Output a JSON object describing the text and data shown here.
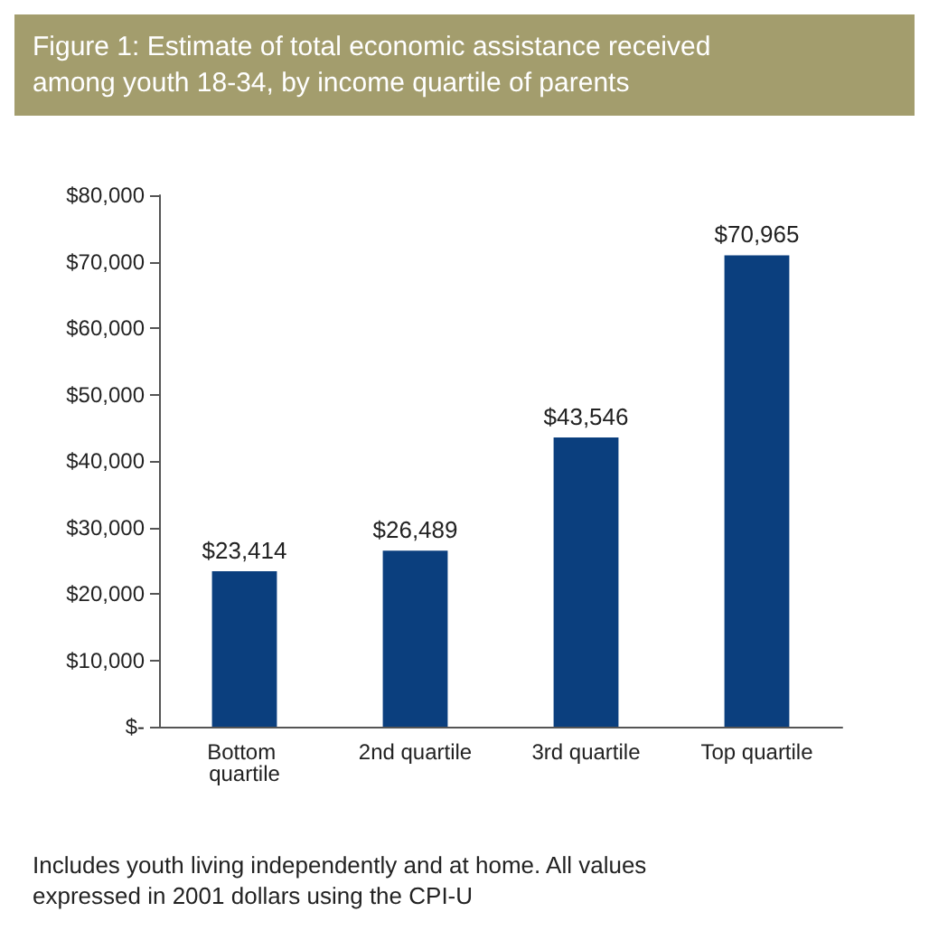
{
  "chart_data": {
    "type": "bar",
    "title": "Figure 1: Estimate of total economic assistance received among youth 18-34, by income quartile of parents",
    "categories": [
      "Bottom quartile",
      "2nd quartile",
      "3rd quartile",
      "Top quartile"
    ],
    "values": [
      23414,
      26489,
      43546,
      70965
    ],
    "value_labels": [
      "$23,414",
      "$26,489",
      "$43,546",
      "$70,965"
    ],
    "color": "#0b3f7e",
    "ylim": [
      0,
      80000
    ],
    "yticks": [
      {
        "value": 0,
        "label": "$-"
      },
      {
        "value": 10000,
        "label": "$10,000"
      },
      {
        "value": 20000,
        "label": "$20,000"
      },
      {
        "value": 30000,
        "label": "$30,000"
      },
      {
        "value": 40000,
        "label": "$40,000"
      },
      {
        "value": 50000,
        "label": "$50,000"
      },
      {
        "value": 60000,
        "label": "$60,000"
      },
      {
        "value": 70000,
        "label": "$70,000"
      },
      {
        "value": 80000,
        "label": "$80,000"
      }
    ],
    "grid": false,
    "annotations": [
      "Includes youth living independently and at home. All values expressed in 2001 dollars using the CPI-U"
    ]
  }
}
